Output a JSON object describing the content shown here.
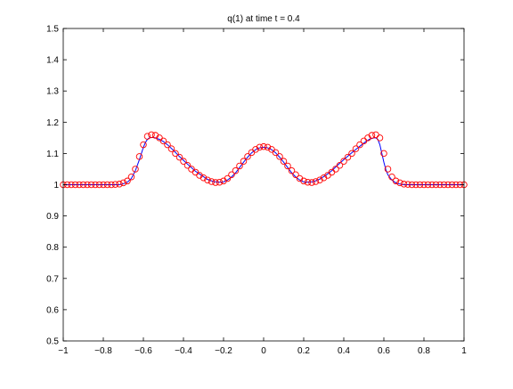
{
  "chart_data": {
    "type": "line",
    "title": "q(1)   at time t = 0.4",
    "xlim": [
      -1,
      1
    ],
    "ylim": [
      0.5,
      1.5
    ],
    "xticks": [
      -1,
      -0.8,
      -0.6,
      -0.4,
      -0.2,
      0,
      0.2,
      0.4,
      0.6,
      0.8,
      1
    ],
    "xtick_labels": [
      "−1",
      "−0.8",
      "−0.6",
      "−0.4",
      "−0.2",
      "0",
      "0.2",
      "0.4",
      "0.6",
      "0.8",
      "1"
    ],
    "yticks": [
      0.5,
      0.6,
      0.7,
      0.8,
      0.9,
      1,
      1.1,
      1.2,
      1.3,
      1.4,
      1.5
    ],
    "ytick_labels": [
      "0.5",
      "0.6",
      "0.7",
      "0.8",
      "0.9",
      "1",
      "1.1",
      "1.2",
      "1.3",
      "1.4",
      "1.5"
    ],
    "grid": false,
    "series": [
      {
        "style": "line",
        "color": "#0000ff",
        "x": [
          -1,
          -0.72,
          -0.7,
          -0.68,
          -0.66,
          -0.64,
          -0.62,
          -0.6,
          -0.59,
          -0.58,
          -0.57,
          -0.56,
          -0.55,
          -0.54,
          -0.52,
          -0.5,
          -0.48,
          -0.45,
          -0.42,
          -0.4,
          -0.37,
          -0.34,
          -0.31,
          -0.28,
          -0.25,
          -0.22,
          -0.2,
          -0.18,
          -0.16,
          -0.14,
          -0.12,
          -0.1,
          -0.08,
          -0.06,
          -0.04,
          -0.02,
          0,
          0.02,
          0.04,
          0.06,
          0.08,
          0.1,
          0.12,
          0.14,
          0.16,
          0.18,
          0.2,
          0.22,
          0.25,
          0.28,
          0.31,
          0.34,
          0.37,
          0.4,
          0.43,
          0.46,
          0.49,
          0.51,
          0.53,
          0.55,
          0.56,
          0.57,
          0.58,
          0.59,
          0.6,
          0.61,
          0.62,
          0.64,
          0.66,
          0.68,
          0.7,
          0.72,
          1
        ],
        "y": [
          1.0,
          1.0,
          1.003,
          1.008,
          1.02,
          1.045,
          1.08,
          1.12,
          1.135,
          1.145,
          1.15,
          1.151,
          1.151,
          1.15,
          1.145,
          1.138,
          1.128,
          1.11,
          1.09,
          1.078,
          1.06,
          1.043,
          1.03,
          1.017,
          1.01,
          1.008,
          1.009,
          1.015,
          1.025,
          1.038,
          1.055,
          1.072,
          1.088,
          1.102,
          1.112,
          1.118,
          1.12,
          1.118,
          1.112,
          1.102,
          1.088,
          1.072,
          1.055,
          1.038,
          1.025,
          1.015,
          1.009,
          1.008,
          1.01,
          1.018,
          1.03,
          1.045,
          1.063,
          1.08,
          1.097,
          1.113,
          1.128,
          1.138,
          1.146,
          1.15,
          1.15,
          1.145,
          1.128,
          1.1,
          1.072,
          1.048,
          1.032,
          1.015,
          1.006,
          1.002,
          1.0,
          1.0,
          1.0
        ]
      },
      {
        "style": "markers",
        "marker": "circle-open",
        "color": "#ff0000",
        "x": [
          -1,
          -0.98,
          -0.96,
          -0.94,
          -0.92,
          -0.9,
          -0.88,
          -0.86,
          -0.84,
          -0.82,
          -0.8,
          -0.78,
          -0.76,
          -0.74,
          -0.72,
          -0.7,
          -0.68,
          -0.66,
          -0.64,
          -0.62,
          -0.6,
          -0.58,
          -0.56,
          -0.54,
          -0.52,
          -0.5,
          -0.48,
          -0.46,
          -0.44,
          -0.42,
          -0.4,
          -0.38,
          -0.36,
          -0.34,
          -0.32,
          -0.3,
          -0.28,
          -0.26,
          -0.24,
          -0.22,
          -0.2,
          -0.18,
          -0.16,
          -0.14,
          -0.12,
          -0.1,
          -0.08,
          -0.06,
          -0.04,
          -0.02,
          0,
          0.02,
          0.04,
          0.06,
          0.08,
          0.1,
          0.12,
          0.14,
          0.16,
          0.18,
          0.2,
          0.22,
          0.24,
          0.26,
          0.28,
          0.3,
          0.32,
          0.34,
          0.36,
          0.38,
          0.4,
          0.42,
          0.44,
          0.46,
          0.48,
          0.5,
          0.52,
          0.54,
          0.56,
          0.58,
          0.6,
          0.62,
          0.64,
          0.66,
          0.68,
          0.7,
          0.72,
          0.74,
          0.76,
          0.78,
          0.8,
          0.82,
          0.84,
          0.86,
          0.88,
          0.9,
          0.92,
          0.94,
          0.96,
          0.98,
          1
        ],
        "y": [
          1.0,
          1.0,
          1.0,
          1.0,
          1.0,
          1.0,
          1.0,
          1.0,
          1.0,
          1.0,
          1.0,
          1.0,
          1.0,
          1.001,
          1.002,
          1.006,
          1.012,
          1.025,
          1.05,
          1.09,
          1.128,
          1.155,
          1.16,
          1.158,
          1.15,
          1.14,
          1.128,
          1.115,
          1.1,
          1.088,
          1.075,
          1.062,
          1.05,
          1.04,
          1.03,
          1.022,
          1.015,
          1.01,
          1.007,
          1.008,
          1.012,
          1.02,
          1.032,
          1.045,
          1.06,
          1.075,
          1.09,
          1.103,
          1.113,
          1.12,
          1.122,
          1.12,
          1.113,
          1.103,
          1.09,
          1.075,
          1.06,
          1.045,
          1.032,
          1.02,
          1.012,
          1.008,
          1.007,
          1.01,
          1.015,
          1.022,
          1.03,
          1.04,
          1.05,
          1.062,
          1.075,
          1.088,
          1.1,
          1.115,
          1.128,
          1.14,
          1.15,
          1.158,
          1.16,
          1.15,
          1.1,
          1.05,
          1.025,
          1.012,
          1.006,
          1.002,
          1.001,
          1.0,
          1.0,
          1.0,
          1.0,
          1.0,
          1.0,
          1.0,
          1.0,
          1.0,
          1.0,
          1.0,
          1.0,
          1.0,
          1.0
        ]
      }
    ]
  }
}
